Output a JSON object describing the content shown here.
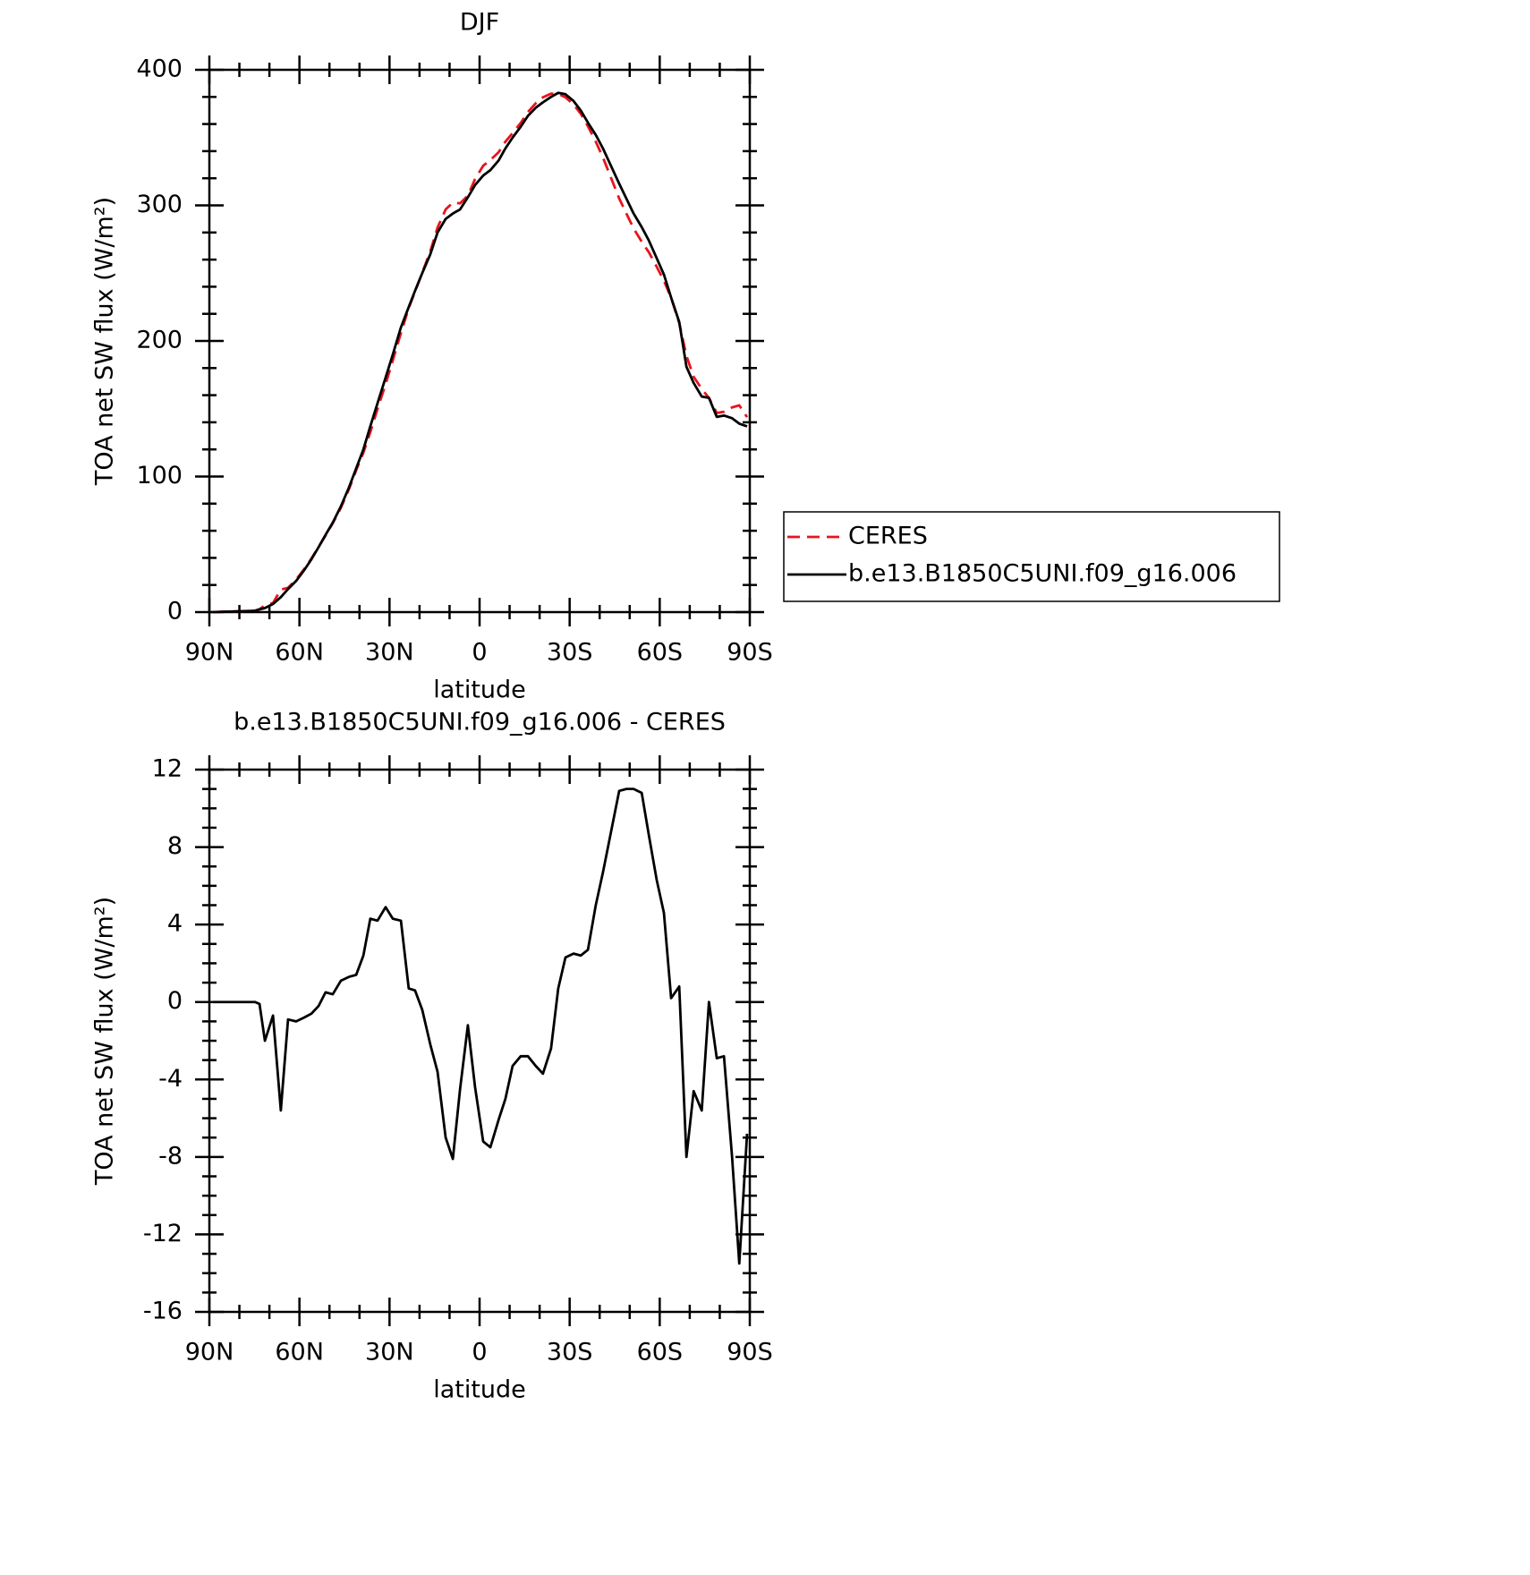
{
  "chart_data": [
    {
      "type": "line",
      "title": "DJF",
      "xlabel": "latitude",
      "ylabel": "TOA net SW flux (W/m²)",
      "x": [
        88.8,
        74.8,
        73.3,
        71.5,
        68.8,
        66.2,
        63.8,
        61.1,
        58.4,
        56.0,
        53.6,
        51.3,
        48.9,
        46.2,
        43.5,
        41.1,
        38.7,
        36.4,
        34.0,
        31.3,
        28.9,
        26.2,
        23.6,
        21.5,
        19.1,
        16.4,
        14.0,
        11.3,
        8.9,
        6.5,
        3.9,
        1.5,
        -1.2,
        -3.6,
        -6.3,
        -8.6,
        -11.0,
        -13.7,
        -16.1,
        -18.7,
        -21.1,
        -23.8,
        -26.2,
        -28.6,
        -31.3,
        -33.7,
        -36.1,
        -38.7,
        -41.1,
        -43.8,
        -46.5,
        -48.9,
        -51.3,
        -54.0,
        -56.4,
        -59.0,
        -61.4,
        -63.8,
        -66.5,
        -68.9,
        -71.3,
        -74.0,
        -76.4,
        -79.0,
        -81.4,
        -84.1,
        -86.5,
        -89.1
      ],
      "xlim": [
        90,
        -90
      ],
      "xticks": [
        {
          "value": 90,
          "label": "90N"
        },
        {
          "value": 60,
          "label": "60N"
        },
        {
          "value": 30,
          "label": "30N"
        },
        0,
        {
          "value": -30,
          "label": "30S"
        },
        {
          "value": -60,
          "label": "60S"
        },
        {
          "value": -90,
          "label": "90S"
        }
      ],
      "ylim": [
        0,
        400
      ],
      "yticks": [
        0,
        100,
        200,
        300,
        400
      ],
      "legend": "right",
      "series": [
        {
          "name": "CERES",
          "color": "#e8141c",
          "dash": "dashed",
          "values": [
            0,
            1,
            2.1,
            5,
            6.7,
            16.6,
            17.9,
            24,
            31.8,
            39.6,
            48.2,
            56.5,
            65.6,
            76.9,
            90.7,
            104.6,
            117.6,
            132.7,
            149.8,
            168.1,
            185.7,
            205.8,
            224.3,
            236.4,
            250.4,
            266.2,
            283.6,
            297,
            302.1,
            301.5,
            307.2,
            319.4,
            329.2,
            333.5,
            339.1,
            347,
            353.3,
            360.8,
            368.8,
            375.3,
            379.7,
            382.4,
            382.3,
            379.7,
            374.5,
            367.6,
            358.3,
            347,
            335.3,
            320.2,
            305.1,
            294,
            283,
            273.2,
            265.4,
            254.7,
            244.4,
            231.8,
            213.2,
            189,
            173.6,
            164.6,
            158,
            146.9,
            147.8,
            151,
            152.5,
            143.8
          ]
        },
        {
          "name": "b.e13.B1850C5UNI.f09_g16.006",
          "color": "#000000",
          "dash": "solid",
          "values": [
            0,
            1,
            2,
            3,
            6,
            11,
            17,
            23,
            31,
            39,
            48,
            57,
            66,
            78,
            92,
            106,
            120,
            137,
            154,
            173,
            190,
            210,
            225,
            237,
            250,
            264,
            280,
            290,
            294,
            297,
            306,
            315,
            322,
            326,
            333,
            342,
            350,
            358,
            366,
            372,
            376,
            380,
            383,
            382,
            377,
            370,
            361,
            352,
            342,
            329,
            316,
            305,
            294,
            284,
            274,
            261,
            249,
            232,
            214,
            181,
            169,
            159,
            158,
            144,
            145,
            143,
            139,
            137
          ]
        }
      ]
    },
    {
      "type": "line",
      "title": "b.e13.B1850C5UNI.f09_g16.006 - CERES",
      "xlabel": "latitude",
      "ylabel": "TOA net SW flux (W/m²)",
      "x": [
        88.8,
        74.8,
        73.3,
        71.5,
        68.8,
        66.2,
        63.8,
        61.1,
        58.4,
        56.0,
        53.6,
        51.3,
        48.9,
        46.2,
        43.5,
        41.1,
        38.7,
        36.4,
        34.0,
        31.3,
        28.9,
        26.2,
        23.6,
        21.5,
        19.1,
        16.4,
        14.0,
        11.3,
        8.9,
        6.5,
        3.9,
        1.5,
        -1.2,
        -3.6,
        -6.3,
        -8.6,
        -11.0,
        -13.7,
        -16.1,
        -18.7,
        -21.1,
        -23.8,
        -26.2,
        -28.6,
        -31.3,
        -33.7,
        -36.1,
        -38.7,
        -41.1,
        -43.8,
        -46.5,
        -48.9,
        -51.3,
        -54.0,
        -56.4,
        -59.0,
        -61.4,
        -63.8,
        -66.5,
        -68.9,
        -71.3,
        -74.0,
        -76.4,
        -79.0,
        -81.4,
        -84.1,
        -86.5,
        -89.1
      ],
      "xlim": [
        90,
        -90
      ],
      "xticks": [
        {
          "value": 90,
          "label": "90N"
        },
        {
          "value": 60,
          "label": "60N"
        },
        {
          "value": 30,
          "label": "30N"
        },
        0,
        {
          "value": -30,
          "label": "30S"
        },
        {
          "value": -60,
          "label": "60S"
        },
        {
          "value": -90,
          "label": "90S"
        }
      ],
      "ylim": [
        -16,
        12
      ],
      "yticks": [
        -16,
        -12,
        -8,
        -4,
        0,
        4,
        8,
        12
      ],
      "series": [
        {
          "color": "#000000",
          "dash": "solid",
          "values": [
            0,
            0,
            -0.1,
            -2.0,
            -0.7,
            -5.6,
            -0.9,
            -1.0,
            -0.8,
            -0.6,
            -0.2,
            0.5,
            0.4,
            1.1,
            1.3,
            1.4,
            2.4,
            4.3,
            4.2,
            4.9,
            4.3,
            4.2,
            0.7,
            0.6,
            -0.4,
            -2.2,
            -3.6,
            -7.0,
            -8.1,
            -4.5,
            -1.2,
            -4.4,
            -7.2,
            -7.5,
            -6.1,
            -5.0,
            -3.3,
            -2.8,
            -2.8,
            -3.3,
            -3.7,
            -2.4,
            0.7,
            2.3,
            2.5,
            2.4,
            2.7,
            5.0,
            6.7,
            8.8,
            10.9,
            11.0,
            11.0,
            10.8,
            8.6,
            6.3,
            4.6,
            0.2,
            0.8,
            -8.0,
            -4.6,
            -5.6,
            0.0,
            -2.9,
            -2.8,
            -8.0,
            -13.5,
            -6.8
          ]
        }
      ]
    }
  ]
}
